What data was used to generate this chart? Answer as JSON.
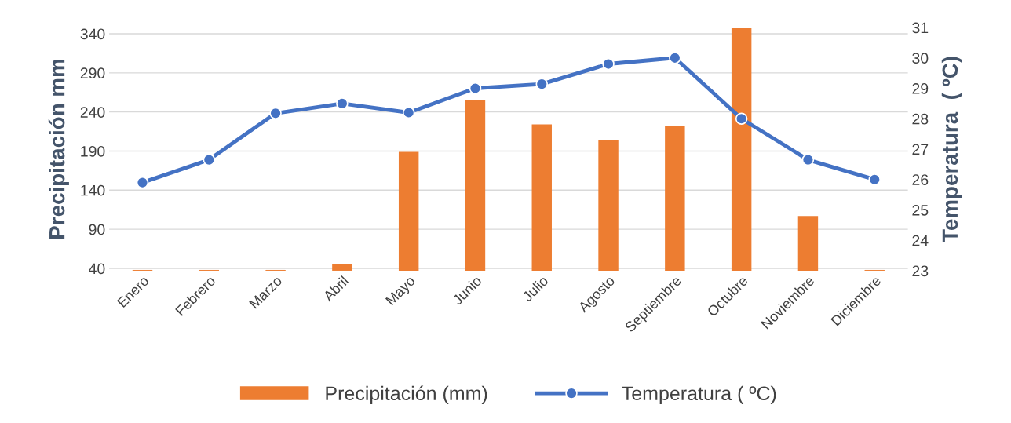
{
  "chart_data": {
    "type": "bar",
    "categories": [
      "Enero",
      "Febrero",
      "Marzo",
      "Abril",
      "Mayo",
      "Junio",
      "Julio",
      "Agosto",
      "Septiembre",
      "Octubre",
      "Noviembre",
      "Diciembre"
    ],
    "series": [
      {
        "name": "Precipitación (mm)",
        "color": "#ed7d31",
        "values": [
          38,
          38,
          38,
          45,
          189,
          255,
          224,
          204,
          222,
          347,
          107,
          38
        ]
      },
      {
        "name": "Temperatura ( ºC)",
        "type": "line",
        "axis": "y2",
        "color": "#4472c4",
        "marker": "circle",
        "values": [
          25.9,
          26.65,
          28.18,
          28.5,
          28.2,
          29.0,
          29.14,
          29.8,
          30.0,
          28.0,
          26.65,
          26.0
        ]
      }
    ],
    "ylabel": "Precipitación mm",
    "y2label": "Temperatura  ( ºC)",
    "ylim": [
      37,
      348
    ],
    "yticks": [
      40,
      90,
      140,
      190,
      240,
      290,
      340
    ],
    "y2lim": [
      23,
      31
    ],
    "y2ticks": [
      23,
      24,
      25,
      26,
      27,
      28,
      29,
      30,
      31
    ],
    "grid": "y",
    "legend": "bottom"
  }
}
